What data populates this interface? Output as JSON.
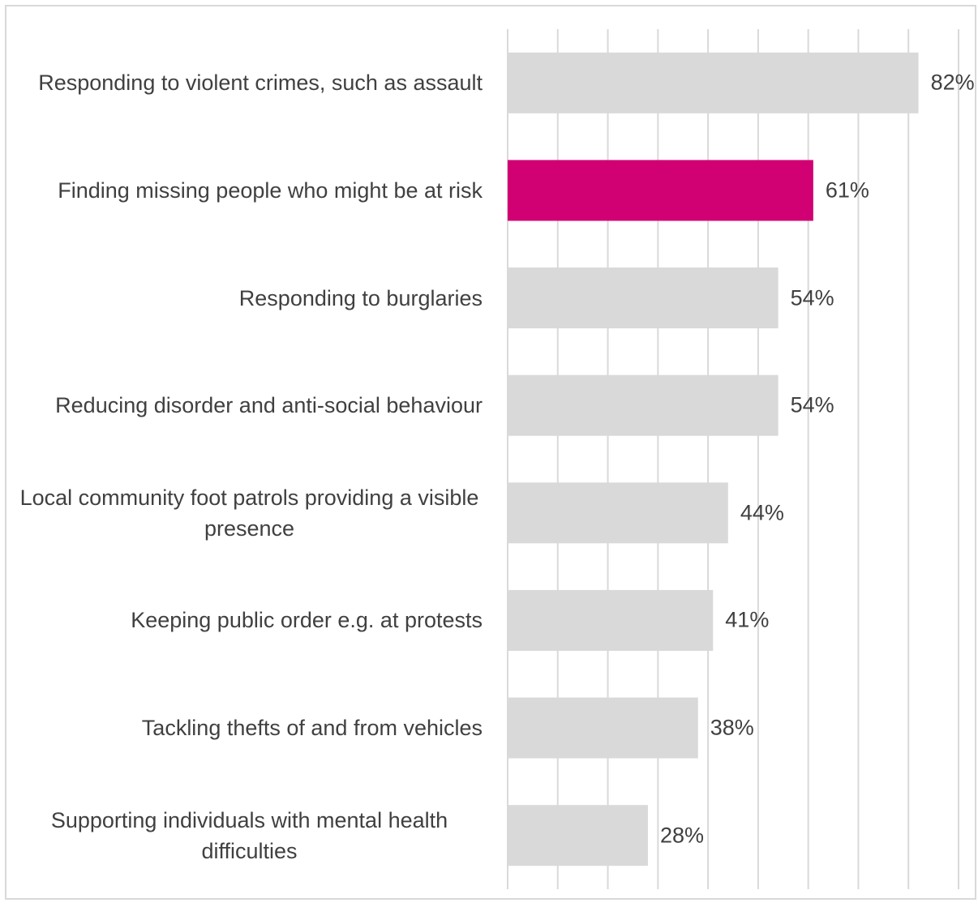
{
  "chart_data": {
    "type": "hbar",
    "categories": [
      "Responding to violent crimes, such as assault",
      "Finding missing people who might be at risk",
      "Responding to burglaries",
      "Reducing disorder and anti-social behaviour",
      "Local community foot patrols providing a visible presence",
      "Keeping public order e.g. at protests",
      "Tackling thefts of and from vehicles",
      "Supporting individuals with mental health difficulties"
    ],
    "values": [
      82,
      61,
      54,
      54,
      44,
      41,
      38,
      28
    ],
    "value_labels": [
      "82%",
      "61%",
      "54%",
      "54%",
      "44%",
      "41%",
      "38%",
      "28%"
    ],
    "colors": [
      "#d9d9d9",
      "#d10073",
      "#d9d9d9",
      "#d9d9d9",
      "#d9d9d9",
      "#d9d9d9",
      "#d9d9d9",
      "#d9d9d9"
    ],
    "xlim": [
      0,
      90
    ],
    "xticks": [
      0,
      10,
      20,
      30,
      40,
      50,
      60,
      70,
      80,
      90
    ],
    "grid": true
  }
}
